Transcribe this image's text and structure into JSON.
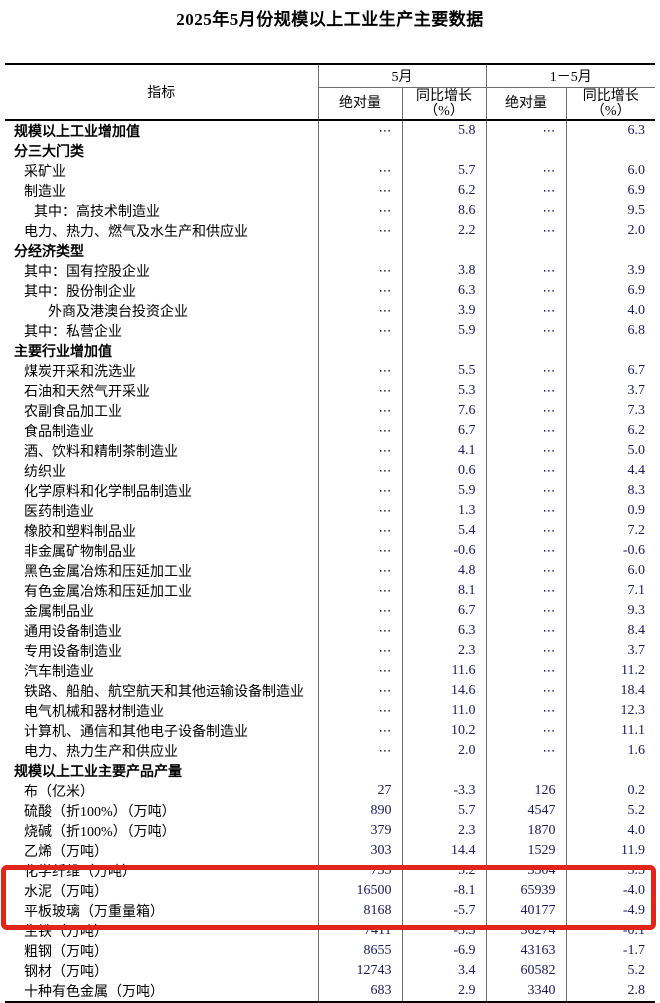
{
  "title": "2025年5月份规模以上工业生产主要数据",
  "colors": {
    "highlight_border": "#e2251a",
    "number_text": "#1b1b62",
    "label_text": "#000000",
    "grid_line": "#6e6e6e"
  },
  "table": {
    "header": {
      "indicator": "指标",
      "group_may": "5月",
      "group_jan_may": "1－5月",
      "abs_label": "绝对量",
      "yoy_line1": "同比增长",
      "yoy_line2": "（%）"
    },
    "rows": [
      {
        "label": "规模以上工业增加值",
        "level": 0,
        "bold": true,
        "may_abs": "⋯",
        "may_yoy": "5.8",
        "cum_abs": "⋯",
        "cum_yoy": "6.3"
      },
      {
        "label": "分三大门类",
        "level": 0,
        "bold": true,
        "may_abs": "",
        "may_yoy": "",
        "cum_abs": "",
        "cum_yoy": ""
      },
      {
        "label": "采矿业",
        "level": 1,
        "bold": false,
        "may_abs": "⋯",
        "may_yoy": "5.7",
        "cum_abs": "⋯",
        "cum_yoy": "6.0"
      },
      {
        "label": "制造业",
        "level": 1,
        "bold": false,
        "may_abs": "⋯",
        "may_yoy": "6.2",
        "cum_abs": "⋯",
        "cum_yoy": "6.9"
      },
      {
        "label": "其中：高技术制造业",
        "level": 2,
        "bold": false,
        "may_abs": "⋯",
        "may_yoy": "8.6",
        "cum_abs": "⋯",
        "cum_yoy": "9.5"
      },
      {
        "label": "电力、热力、燃气及水生产和供应业",
        "level": 1,
        "bold": false,
        "may_abs": "⋯",
        "may_yoy": "2.2",
        "cum_abs": "⋯",
        "cum_yoy": "2.0"
      },
      {
        "label": "分经济类型",
        "level": 0,
        "bold": true,
        "may_abs": "",
        "may_yoy": "",
        "cum_abs": "",
        "cum_yoy": ""
      },
      {
        "label": "其中：国有控股企业",
        "level": 1,
        "bold": false,
        "may_abs": "⋯",
        "may_yoy": "3.8",
        "cum_abs": "⋯",
        "cum_yoy": "3.9"
      },
      {
        "label": "其中：股份制企业",
        "level": 1,
        "bold": false,
        "may_abs": "⋯",
        "may_yoy": "6.3",
        "cum_abs": "⋯",
        "cum_yoy": "6.9"
      },
      {
        "label": "外商及港澳台投资企业",
        "level": 3,
        "bold": false,
        "may_abs": "⋯",
        "may_yoy": "3.9",
        "cum_abs": "⋯",
        "cum_yoy": "4.0"
      },
      {
        "label": "其中：私营企业",
        "level": 1,
        "bold": false,
        "may_abs": "⋯",
        "may_yoy": "5.9",
        "cum_abs": "⋯",
        "cum_yoy": "6.8"
      },
      {
        "label": "主要行业增加值",
        "level": 0,
        "bold": true,
        "may_abs": "",
        "may_yoy": "",
        "cum_abs": "",
        "cum_yoy": ""
      },
      {
        "label": "煤炭开采和洗选业",
        "level": 1,
        "bold": false,
        "may_abs": "⋯",
        "may_yoy": "5.5",
        "cum_abs": "⋯",
        "cum_yoy": "6.7"
      },
      {
        "label": "石油和天然气开采业",
        "level": 1,
        "bold": false,
        "may_abs": "⋯",
        "may_yoy": "5.3",
        "cum_abs": "⋯",
        "cum_yoy": "3.7"
      },
      {
        "label": "农副食品加工业",
        "level": 1,
        "bold": false,
        "may_abs": "⋯",
        "may_yoy": "7.6",
        "cum_abs": "⋯",
        "cum_yoy": "7.3"
      },
      {
        "label": "食品制造业",
        "level": 1,
        "bold": false,
        "may_abs": "⋯",
        "may_yoy": "6.7",
        "cum_abs": "⋯",
        "cum_yoy": "6.2"
      },
      {
        "label": "酒、饮料和精制茶制造业",
        "level": 1,
        "bold": false,
        "may_abs": "⋯",
        "may_yoy": "4.1",
        "cum_abs": "⋯",
        "cum_yoy": "5.0"
      },
      {
        "label": "纺织业",
        "level": 1,
        "bold": false,
        "may_abs": "⋯",
        "may_yoy": "0.6",
        "cum_abs": "⋯",
        "cum_yoy": "4.4"
      },
      {
        "label": "化学原料和化学制品制造业",
        "level": 1,
        "bold": false,
        "may_abs": "⋯",
        "may_yoy": "5.9",
        "cum_abs": "⋯",
        "cum_yoy": "8.3"
      },
      {
        "label": "医药制造业",
        "level": 1,
        "bold": false,
        "may_abs": "⋯",
        "may_yoy": "1.3",
        "cum_abs": "⋯",
        "cum_yoy": "0.9"
      },
      {
        "label": "橡胶和塑料制品业",
        "level": 1,
        "bold": false,
        "may_abs": "⋯",
        "may_yoy": "5.4",
        "cum_abs": "⋯",
        "cum_yoy": "7.2"
      },
      {
        "label": "非金属矿物制品业",
        "level": 1,
        "bold": false,
        "may_abs": "⋯",
        "may_yoy": "-0.6",
        "cum_abs": "⋯",
        "cum_yoy": "-0.6"
      },
      {
        "label": "黑色金属冶炼和压延加工业",
        "level": 1,
        "bold": false,
        "may_abs": "⋯",
        "may_yoy": "4.8",
        "cum_abs": "⋯",
        "cum_yoy": "6.0"
      },
      {
        "label": "有色金属冶炼和压延加工业",
        "level": 1,
        "bold": false,
        "may_abs": "⋯",
        "may_yoy": "8.1",
        "cum_abs": "⋯",
        "cum_yoy": "7.1"
      },
      {
        "label": "金属制品业",
        "level": 1,
        "bold": false,
        "may_abs": "⋯",
        "may_yoy": "6.7",
        "cum_abs": "⋯",
        "cum_yoy": "9.3"
      },
      {
        "label": "通用设备制造业",
        "level": 1,
        "bold": false,
        "may_abs": "⋯",
        "may_yoy": "6.3",
        "cum_abs": "⋯",
        "cum_yoy": "8.4"
      },
      {
        "label": "专用设备制造业",
        "level": 1,
        "bold": false,
        "may_abs": "⋯",
        "may_yoy": "2.3",
        "cum_abs": "⋯",
        "cum_yoy": "3.7"
      },
      {
        "label": "汽车制造业",
        "level": 1,
        "bold": false,
        "may_abs": "⋯",
        "may_yoy": "11.6",
        "cum_abs": "⋯",
        "cum_yoy": "11.2"
      },
      {
        "label": "铁路、船舶、航空航天和其他运输设备制造业",
        "level": 1,
        "bold": false,
        "may_abs": "⋯",
        "may_yoy": "14.6",
        "cum_abs": "⋯",
        "cum_yoy": "18.4"
      },
      {
        "label": "电气机械和器材制造业",
        "level": 1,
        "bold": false,
        "may_abs": "⋯",
        "may_yoy": "11.0",
        "cum_abs": "⋯",
        "cum_yoy": "12.3"
      },
      {
        "label": "计算机、通信和其他电子设备制造业",
        "level": 1,
        "bold": false,
        "may_abs": "⋯",
        "may_yoy": "10.2",
        "cum_abs": "⋯",
        "cum_yoy": "11.1"
      },
      {
        "label": "电力、热力生产和供应业",
        "level": 1,
        "bold": false,
        "may_abs": "⋯",
        "may_yoy": "2.0",
        "cum_abs": "⋯",
        "cum_yoy": "1.6"
      },
      {
        "label": "规模以上工业主要产品产量",
        "level": 0,
        "bold": true,
        "may_abs": "",
        "may_yoy": "",
        "cum_abs": "",
        "cum_yoy": ""
      },
      {
        "label": "布（亿米）",
        "level": 1,
        "bold": false,
        "may_abs": "27",
        "may_yoy": "-3.3",
        "cum_abs": "126",
        "cum_yoy": "0.2"
      },
      {
        "label": "硫酸（折100%）（万吨）",
        "level": 1,
        "bold": false,
        "may_abs": "890",
        "may_yoy": "5.7",
        "cum_abs": "4547",
        "cum_yoy": "5.2"
      },
      {
        "label": "烧碱（折100%）（万吨）",
        "level": 1,
        "bold": false,
        "may_abs": "379",
        "may_yoy": "2.3",
        "cum_abs": "1870",
        "cum_yoy": "4.0"
      },
      {
        "label": "乙烯（万吨）",
        "level": 1,
        "bold": false,
        "may_abs": "303",
        "may_yoy": "14.4",
        "cum_abs": "1529",
        "cum_yoy": "11.9"
      },
      {
        "label": "化学纤维（万吨）",
        "level": 1,
        "bold": false,
        "may_abs": "735",
        "may_yoy": "5.2",
        "cum_abs": "3504",
        "cum_yoy": "5.5"
      },
      {
        "label": "水泥（万吨）",
        "level": 1,
        "bold": false,
        "may_abs": "16500",
        "may_yoy": "-8.1",
        "cum_abs": "65939",
        "cum_yoy": "-4.0"
      },
      {
        "label": "平板玻璃（万重量箱）",
        "level": 1,
        "bold": false,
        "may_abs": "8168",
        "may_yoy": "-5.7",
        "cum_abs": "40177",
        "cum_yoy": "-4.9"
      },
      {
        "label": "生铁（万吨）",
        "level": 1,
        "bold": false,
        "may_abs": "7411",
        "may_yoy": "-3.3",
        "cum_abs": "36274",
        "cum_yoy": "-0.1",
        "highlighted": true
      },
      {
        "label": "粗钢（万吨）",
        "level": 1,
        "bold": false,
        "may_abs": "8655",
        "may_yoy": "-6.9",
        "cum_abs": "43163",
        "cum_yoy": "-1.7",
        "highlighted": true
      },
      {
        "label": "钢材（万吨）",
        "level": 1,
        "bold": false,
        "may_abs": "12743",
        "may_yoy": "3.4",
        "cum_abs": "60582",
        "cum_yoy": "5.2",
        "highlighted": true
      },
      {
        "label": "十种有色金属（万吨）",
        "level": 1,
        "bold": false,
        "may_abs": "683",
        "may_yoy": "2.9",
        "cum_abs": "3340",
        "cum_yoy": "2.8"
      }
    ],
    "highlight_annotation": {
      "rows": [
        "生铁（万吨）",
        "粗钢（万吨）",
        "钢材（万吨）"
      ],
      "color": "#e2251a"
    }
  }
}
